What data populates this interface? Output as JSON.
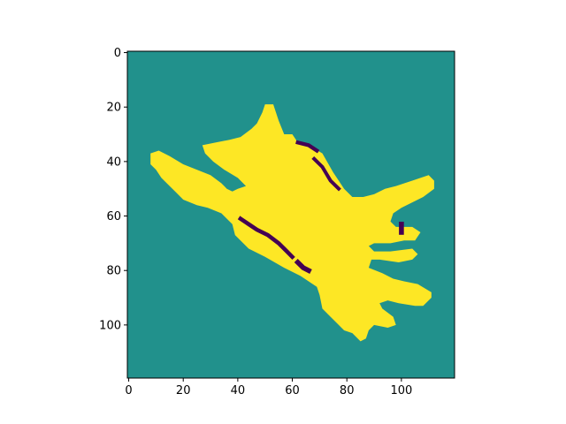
{
  "chart_data": {
    "type": "heatmap",
    "title": "",
    "xlabel": "",
    "ylabel": "",
    "colormap": "viridis",
    "colors": {
      "background": "#21918c",
      "mask": "#fde725",
      "edge": "#440154"
    },
    "grid": false,
    "xlim": [
      -0.5,
      119.5
    ],
    "ylim": [
      119.5,
      -0.5
    ],
    "x_ticks": [
      0,
      20,
      40,
      60,
      80,
      100
    ],
    "x_tick_labels": [
      "0",
      "20",
      "40",
      "60",
      "80",
      "100"
    ],
    "y_ticks": [
      0,
      20,
      40,
      60,
      80,
      100
    ],
    "y_tick_labels": [
      "0",
      "20",
      "40",
      "60",
      "80",
      "100"
    ],
    "levels": {
      "background": 1,
      "mask": 2,
      "edge": 0
    },
    "mask_polygon": [
      [
        50,
        19
      ],
      [
        53,
        19
      ],
      [
        55,
        25
      ],
      [
        57,
        30
      ],
      [
        60,
        30
      ],
      [
        62,
        33
      ],
      [
        66,
        34
      ],
      [
        71,
        37
      ],
      [
        75,
        44
      ],
      [
        79,
        50
      ],
      [
        82,
        53
      ],
      [
        86,
        53
      ],
      [
        90,
        52
      ],
      [
        94,
        50
      ],
      [
        98,
        49
      ],
      [
        104,
        47
      ],
      [
        110,
        45
      ],
      [
        112,
        47
      ],
      [
        112,
        50
      ],
      [
        108,
        53
      ],
      [
        104,
        55
      ],
      [
        100,
        57
      ],
      [
        97,
        59
      ],
      [
        96,
        62
      ],
      [
        98,
        64
      ],
      [
        104,
        64
      ],
      [
        107,
        66
      ],
      [
        105,
        69
      ],
      [
        101,
        69
      ],
      [
        96,
        70
      ],
      [
        93,
        70
      ],
      [
        90,
        70
      ],
      [
        88,
        71
      ],
      [
        90,
        73
      ],
      [
        96,
        73
      ],
      [
        104,
        72
      ],
      [
        106,
        74
      ],
      [
        104,
        76
      ],
      [
        99,
        77
      ],
      [
        92,
        76
      ],
      [
        89,
        76
      ],
      [
        88,
        79
      ],
      [
        93,
        81
      ],
      [
        97,
        83
      ],
      [
        101,
        84
      ],
      [
        106,
        85
      ],
      [
        111,
        88
      ],
      [
        111,
        90
      ],
      [
        108,
        93
      ],
      [
        105,
        93
      ],
      [
        99,
        92
      ],
      [
        95,
        91
      ],
      [
        92,
        92
      ],
      [
        93,
        94
      ],
      [
        97,
        97
      ],
      [
        98,
        100
      ],
      [
        95,
        101
      ],
      [
        90,
        100
      ],
      [
        88,
        102
      ],
      [
        87,
        105
      ],
      [
        85,
        106
      ],
      [
        82,
        103
      ],
      [
        79,
        102
      ],
      [
        74,
        97
      ],
      [
        71,
        94
      ],
      [
        70,
        89
      ],
      [
        69,
        86
      ],
      [
        63,
        82
      ],
      [
        57,
        79
      ],
      [
        50,
        75
      ],
      [
        44,
        72
      ],
      [
        39,
        67
      ],
      [
        38,
        63
      ],
      [
        34,
        59
      ],
      [
        29,
        57
      ],
      [
        25,
        56
      ],
      [
        20,
        54
      ],
      [
        17,
        51
      ],
      [
        15,
        49
      ],
      [
        12,
        46
      ],
      [
        10,
        43
      ],
      [
        8,
        41
      ],
      [
        8,
        37
      ],
      [
        11,
        36
      ],
      [
        15,
        38
      ],
      [
        20,
        41
      ],
      [
        25,
        43
      ],
      [
        30,
        45
      ],
      [
        34,
        48
      ],
      [
        36,
        50
      ],
      [
        38,
        51
      ],
      [
        40,
        50
      ],
      [
        43,
        49
      ],
      [
        40,
        46
      ],
      [
        35,
        43
      ],
      [
        31,
        40
      ],
      [
        28,
        37
      ],
      [
        27,
        34
      ],
      [
        32,
        33
      ],
      [
        37,
        32
      ],
      [
        41,
        31
      ],
      [
        45,
        28
      ],
      [
        47,
        26
      ],
      [
        49,
        22
      ]
    ],
    "edge_segments": [
      {
        "points": [
          [
            62,
            33
          ],
          [
            66,
            34
          ],
          [
            69,
            36
          ]
        ],
        "width": 1.4
      },
      {
        "points": [
          [
            68,
            39
          ],
          [
            71,
            42
          ],
          [
            74,
            47
          ],
          [
            77,
            50
          ]
        ],
        "width": 1.3
      },
      {
        "points": [
          [
            41,
            61
          ],
          [
            44,
            63
          ],
          [
            47,
            65
          ],
          [
            51,
            67
          ],
          [
            55,
            70
          ],
          [
            58,
            73
          ],
          [
            60,
            75
          ]
        ],
        "width": 1.5
      },
      {
        "points": [
          [
            62,
            77
          ],
          [
            64,
            79
          ],
          [
            66,
            80
          ]
        ],
        "width": 1.8
      },
      {
        "points": [
          [
            100,
            63
          ],
          [
            100,
            66
          ]
        ],
        "width": 1.8
      }
    ]
  }
}
